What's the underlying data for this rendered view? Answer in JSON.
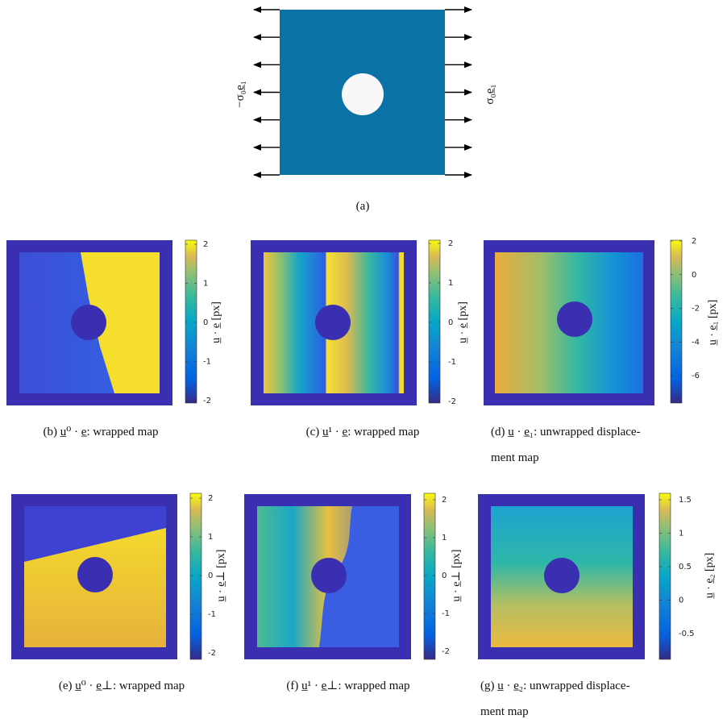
{
  "figure": {
    "panel_a": {
      "left_label": "−σ₀e̲₁",
      "right_label": "σ₀e̲₁",
      "caption": "(a)"
    },
    "panels": [
      {
        "caption": [
          "(b) u̲⁰ · e̲: wrapped map"
        ],
        "colorbar_label": "u̲ · e̲ [px]",
        "colorbar_ticks": [
          2,
          1,
          0,
          -1,
          -2
        ]
      },
      {
        "caption": [
          "(c) u̲¹ · e̲: wrapped map"
        ],
        "colorbar_label": "u̲ · e̲ [px]",
        "colorbar_ticks": [
          2,
          1,
          0,
          -1,
          -2
        ]
      },
      {
        "caption": [
          "(d) u̲ · e̲₁: unwrapped displace-",
          "ment map"
        ],
        "colorbar_label": "u̲ · e̲₁ [px]",
        "colorbar_ticks": [
          2,
          0,
          -2,
          -4,
          -6
        ]
      },
      {
        "caption": [
          "(e) u̲⁰ · e̲⊥: wrapped map"
        ],
        "colorbar_label": "u̲ · e̲⊥ [px]",
        "colorbar_ticks": [
          2,
          1,
          0,
          -1,
          -2
        ]
      },
      {
        "caption": [
          "(f) u̲¹ · e̲⊥: wrapped map"
        ],
        "colorbar_label": "u̲ · e̲⊥ [px]",
        "colorbar_ticks": [
          2,
          1,
          0,
          -1,
          -2
        ]
      },
      {
        "caption": [
          "(g) u̲ · e̲₂: unwrapped displace-",
          "ment map"
        ],
        "colorbar_label": "u̲ · e̲₂ [px]",
        "colorbar_ticks": [
          1.5,
          1,
          0.5,
          0,
          -0.5
        ]
      }
    ]
  }
}
